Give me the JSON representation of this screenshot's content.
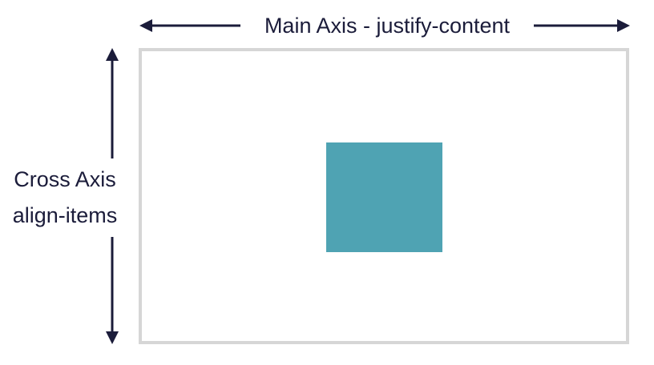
{
  "diagram": {
    "main_axis_label": "Main Axis - justify-content",
    "cross_axis_title": "Cross Axis",
    "cross_axis_property": "align-items"
  },
  "colors": {
    "item_fill": "#4fa3b3",
    "container_border": "#d6d6d6",
    "arrow": "#1b1c3a",
    "text": "#1b1c3a"
  }
}
